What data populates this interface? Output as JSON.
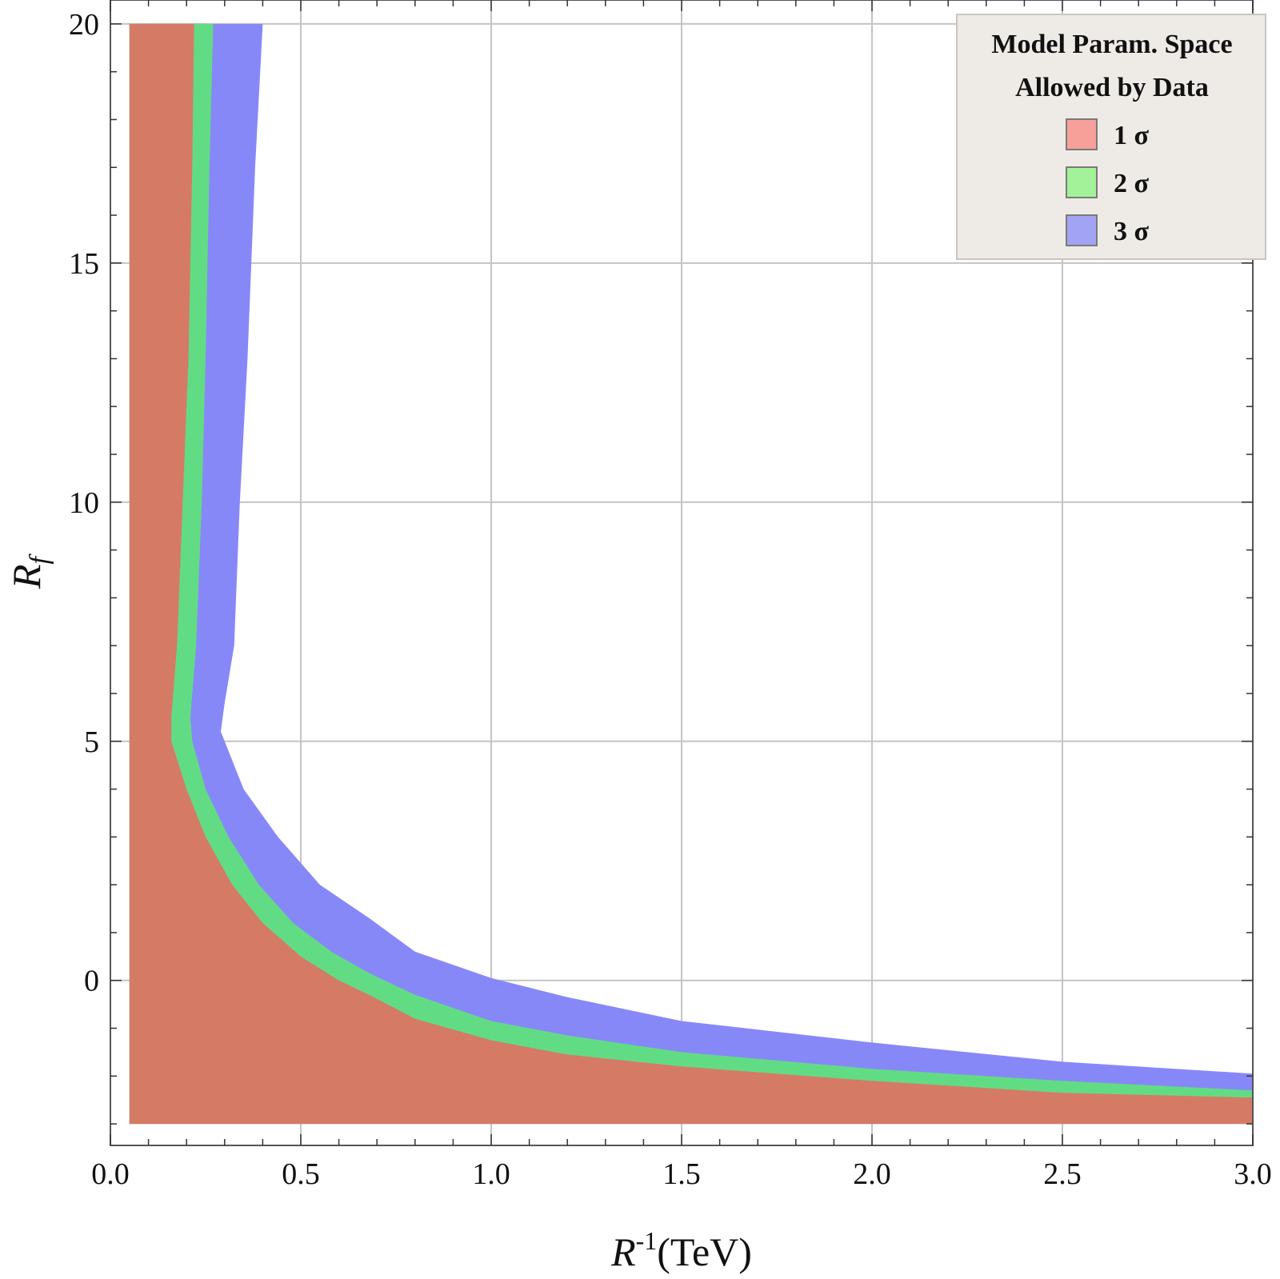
{
  "chart_data": {
    "type": "area",
    "xlabel": "R^{-1}(TeV)",
    "ylabel": "R_f",
    "xlim": [
      0.0,
      3.0
    ],
    "ylim": [
      -3.45,
      20.5
    ],
    "x_ticks": [
      0.0,
      0.5,
      1.0,
      1.5,
      2.0,
      2.5,
      3.0
    ],
    "x_tick_labels": [
      "0.0",
      "0.5",
      "1.0",
      "1.5",
      "2.0",
      "2.5",
      "3.0"
    ],
    "y_ticks": [
      0,
      5,
      10,
      15,
      20
    ],
    "y_tick_labels": [
      "0",
      "5",
      "10",
      "15",
      "20"
    ],
    "grid": true,
    "legend": {
      "position": "top-right",
      "title_lines": [
        "Model Param. Space",
        "Allowed by Data"
      ],
      "entries": [
        {
          "label": "1 σ",
          "swatch": "#f7a09a"
        },
        {
          "label": "2 σ",
          "swatch": "#a3f29a"
        },
        {
          "label": "3 σ",
          "swatch": "#a3a3f3"
        }
      ]
    },
    "series": [
      {
        "name": "1 σ",
        "color": "#d57b65",
        "region": "left/below boundary, down to R_f = -3",
        "boundary": [
          [
            0.22,
            20.0
          ],
          [
            0.215,
            17.0
          ],
          [
            0.205,
            13.0
          ],
          [
            0.19,
            10.0
          ],
          [
            0.175,
            7.0
          ],
          [
            0.16,
            5.5
          ],
          [
            0.16,
            5.0
          ],
          [
            0.2,
            4.0
          ],
          [
            0.25,
            3.0
          ],
          [
            0.32,
            2.0
          ],
          [
            0.4,
            1.2
          ],
          [
            0.5,
            0.5
          ],
          [
            0.6,
            0.0
          ],
          [
            0.68,
            -0.3
          ],
          [
            0.8,
            -0.8
          ],
          [
            1.0,
            -1.25
          ],
          [
            1.2,
            -1.55
          ],
          [
            1.5,
            -1.8
          ],
          [
            2.0,
            -2.1
          ],
          [
            2.5,
            -2.35
          ],
          [
            3.0,
            -2.45
          ]
        ]
      },
      {
        "name": "2 σ",
        "color": "#62dc84",
        "boundary": [
          [
            0.27,
            20.0
          ],
          [
            0.26,
            17.0
          ],
          [
            0.25,
            13.0
          ],
          [
            0.24,
            10.0
          ],
          [
            0.225,
            7.0
          ],
          [
            0.21,
            5.5
          ],
          [
            0.215,
            5.0
          ],
          [
            0.25,
            4.0
          ],
          [
            0.31,
            3.0
          ],
          [
            0.39,
            2.0
          ],
          [
            0.48,
            1.2
          ],
          [
            0.58,
            0.6
          ],
          [
            0.68,
            0.15
          ],
          [
            0.8,
            -0.3
          ],
          [
            1.0,
            -0.85
          ],
          [
            1.2,
            -1.15
          ],
          [
            1.5,
            -1.5
          ],
          [
            2.0,
            -1.85
          ],
          [
            2.5,
            -2.1
          ],
          [
            3.0,
            -2.3
          ]
        ]
      },
      {
        "name": "3 σ",
        "color": "#8788f8",
        "boundary": [
          [
            0.4,
            20.0
          ],
          [
            0.38,
            17.0
          ],
          [
            0.36,
            13.0
          ],
          [
            0.34,
            10.0
          ],
          [
            0.325,
            7.0
          ],
          [
            0.3,
            5.8
          ],
          [
            0.29,
            5.2
          ],
          [
            0.35,
            4.0
          ],
          [
            0.44,
            3.0
          ],
          [
            0.55,
            2.0
          ],
          [
            0.68,
            1.3
          ],
          [
            0.8,
            0.6
          ],
          [
            1.0,
            0.05
          ],
          [
            1.2,
            -0.35
          ],
          [
            1.5,
            -0.85
          ],
          [
            2.0,
            -1.3
          ],
          [
            2.5,
            -1.7
          ],
          [
            3.0,
            -1.95
          ]
        ]
      }
    ]
  }
}
